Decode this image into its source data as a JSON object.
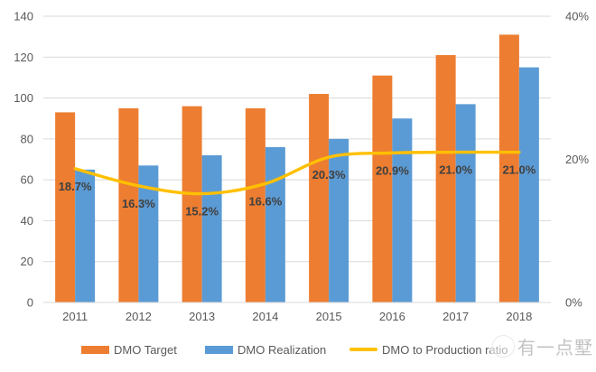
{
  "chart_data": {
    "type": "combo-bar-line",
    "title": "",
    "categories": [
      "2011",
      "2012",
      "2013",
      "2014",
      "2015",
      "2016",
      "2017",
      "2018"
    ],
    "series": [
      {
        "name": "DMO Target",
        "type": "bar",
        "axis": "left",
        "color": "#ED7D31",
        "values": [
          93,
          95,
          96,
          95,
          102,
          111,
          121,
          131
        ]
      },
      {
        "name": "DMO Realization",
        "type": "bar",
        "axis": "left",
        "color": "#5B9BD5",
        "values": [
          65,
          67,
          72,
          76,
          80,
          90,
          97,
          115
        ]
      },
      {
        "name": "DMO to Production ratio",
        "type": "line",
        "axis": "right",
        "color": "#FFC000",
        "smooth": true,
        "values": [
          18.7,
          16.3,
          15.2,
          16.6,
          20.3,
          20.9,
          21.0,
          21.0
        ],
        "labels": [
          "18.7%",
          "16.3%",
          "15.2%",
          "16.6%",
          "20.3%",
          "20.9%",
          "21.0%",
          "21.0%"
        ]
      }
    ],
    "left_axis": {
      "min": 0,
      "max": 140,
      "step": 20,
      "tick_labels": [
        "0",
        "20",
        "40",
        "60",
        "80",
        "100",
        "120",
        "140"
      ]
    },
    "right_axis": {
      "min": 0,
      "max": 40,
      "tick_labels": [
        "0%",
        "20%",
        "40%"
      ]
    },
    "grid": true,
    "legend_position": "bottom"
  },
  "legend": {
    "items": [
      {
        "label": "DMO Target",
        "color": "#ED7D31",
        "shape": "rect"
      },
      {
        "label": "DMO Realization",
        "color": "#5B9BD5",
        "shape": "rect"
      },
      {
        "label": "DMO to Production ratio",
        "color": "#FFC000",
        "shape": "line"
      }
    ]
  },
  "watermark": {
    "text": "有一点墅"
  },
  "colors": {
    "gridline": "#D9D9D9",
    "axis_line": "#D9D9D9",
    "axis_text": "#595959",
    "data_label_text": "#404040",
    "background": "#FFFFFF"
  }
}
